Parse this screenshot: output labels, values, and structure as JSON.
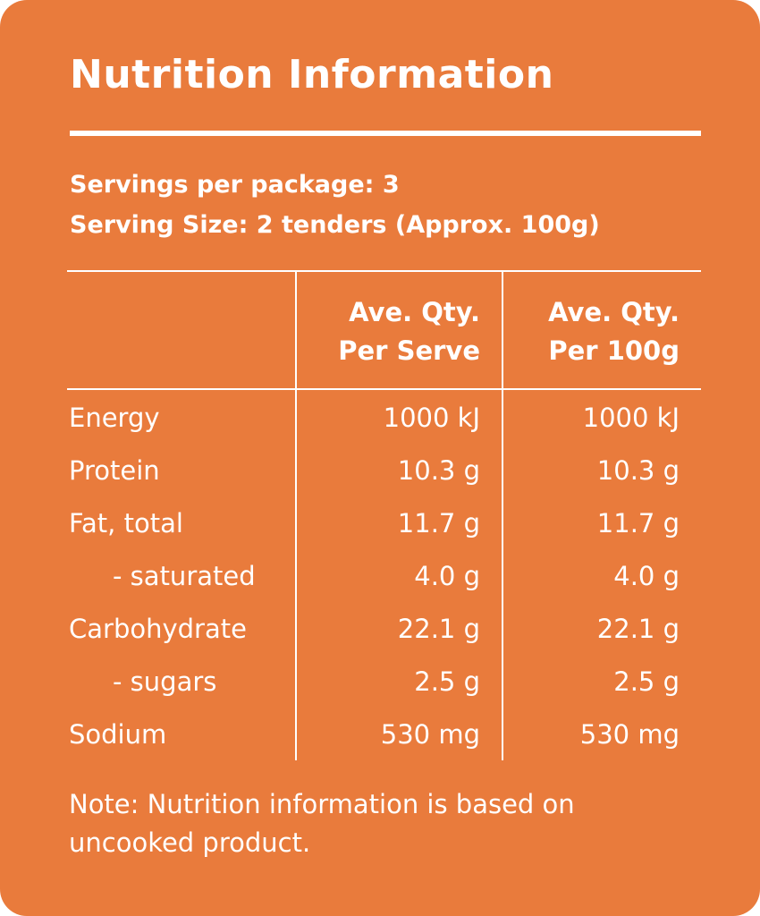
{
  "panel": {
    "title": "Nutrition Information",
    "background_color": "#e97b3c",
    "text_color": "#ffffff"
  },
  "serving": {
    "per_package": "Servings per package: 3",
    "size": "Serving Size: 2 tenders (Approx. 100g)"
  },
  "table": {
    "headers": {
      "per_serve_line1": "Ave. Qty.",
      "per_serve_line2": "Per Serve",
      "per_100g_line1": "Ave. Qty.",
      "per_100g_line2": "Per 100g"
    },
    "rows": [
      {
        "label": "Energy",
        "per_serve": "1000 kJ",
        "per_100g": "1000 kJ",
        "indent": false
      },
      {
        "label": "Protein",
        "per_serve": "10.3 g",
        "per_100g": "10.3 g",
        "indent": false
      },
      {
        "label": "Fat, total",
        "per_serve": "11.7 g",
        "per_100g": "11.7 g",
        "indent": false
      },
      {
        "label": "- saturated",
        "per_serve": "4.0 g",
        "per_100g": "4.0 g",
        "indent": true
      },
      {
        "label": "Carbohydrate",
        "per_serve": "22.1 g",
        "per_100g": "22.1 g",
        "indent": false
      },
      {
        "label": "- sugars",
        "per_serve": "2.5 g",
        "per_100g": "2.5 g",
        "indent": true
      },
      {
        "label": "Sodium",
        "per_serve": "530 mg",
        "per_100g": "530 mg",
        "indent": false
      }
    ]
  },
  "note": "Note: Nutrition information is based on uncooked product."
}
